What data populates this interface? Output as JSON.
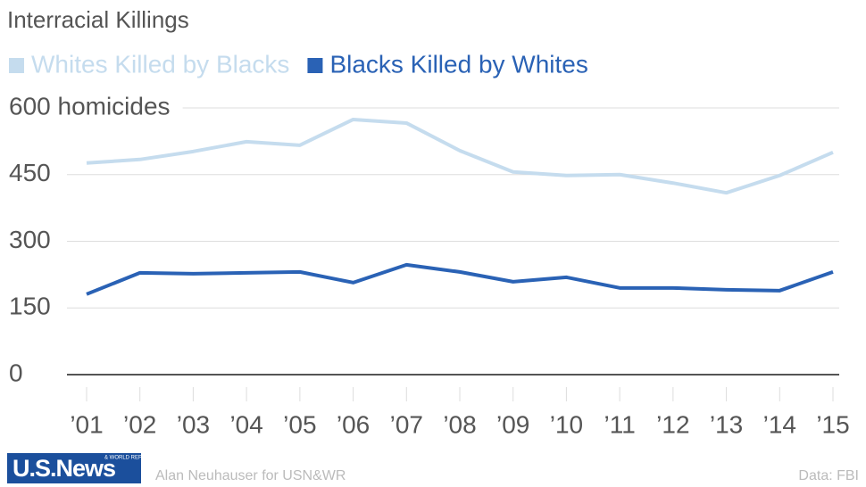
{
  "chart_data": {
    "type": "line",
    "title": "Interracial Killings",
    "categories": [
      "’01",
      "’02",
      "’03",
      "’04",
      "’05",
      "’06",
      "’07",
      "’08",
      "’09",
      "’10",
      "’11",
      "’12",
      "’13",
      "’14",
      "’15"
    ],
    "series": [
      {
        "name": "Whites Killed by Blacks",
        "color": "#c5dcee",
        "values": [
          476,
          484,
          502,
          524,
          516,
          574,
          566,
          504,
          456,
          448,
          450,
          431,
          409,
          448,
          500
        ]
      },
      {
        "name": "Blacks Killed by Whites",
        "color": "#2a62b5",
        "values": [
          181,
          229,
          227,
          229,
          231,
          207,
          247,
          231,
          209,
          219,
          195,
          195,
          191,
          189,
          231
        ]
      }
    ],
    "ylim": [
      0,
      600
    ],
    "yticks": [
      0,
      150,
      300,
      450,
      {
        "value": 600,
        "label": "600 homicides"
      }
    ],
    "grid": true,
    "legend": "top",
    "logo": "U.S.News",
    "logo_sub": "& WORLD REPORT",
    "credit": "Alan Neuhauser for USN&WR",
    "source": "Data: FBI"
  }
}
